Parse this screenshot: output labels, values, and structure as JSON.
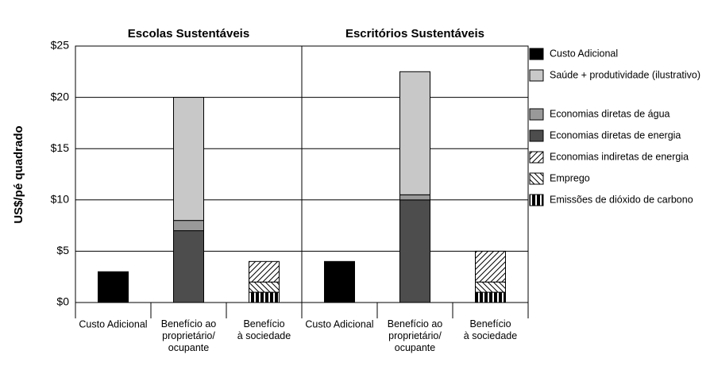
{
  "chart_data": {
    "type": "bar",
    "stacked": true,
    "ylabel": "US$/pé quadrado",
    "ylim": [
      0,
      25
    ],
    "yticks": [
      {
        "value": 0,
        "label": "$0"
      },
      {
        "value": 5,
        "label": "$5"
      },
      {
        "value": 10,
        "label": "$10"
      },
      {
        "value": 15,
        "label": "$15"
      },
      {
        "value": 20,
        "label": "$20"
      },
      {
        "value": 25,
        "label": "$25"
      }
    ],
    "grid": true,
    "legend": "right",
    "series": [
      {
        "name": "Custo Adicional",
        "color": "#000000",
        "pattern": "solid"
      },
      {
        "name": "Saúde + produtividade (ilustrativo)",
        "color": "#c8c8c8",
        "pattern": "solid"
      },
      {
        "name": "Economias diretas de água",
        "color": "#999999",
        "pattern": "solid"
      },
      {
        "name": "Economias diretas de energia",
        "color": "#4d4d4d",
        "pattern": "solid"
      },
      {
        "name": "Economias indiretas de energia",
        "color": "#000000",
        "pattern": "diagonal"
      },
      {
        "name": "Emprego",
        "color": "#000000",
        "pattern": "backdiagonal"
      },
      {
        "name": "Emissões de dióxido de carbono",
        "color": "#000000",
        "pattern": "vertical-stripes"
      }
    ],
    "panels": [
      {
        "title": "Escolas Sustentáveis",
        "categories": [
          "Custo Adicional",
          "Benefício ao\nproprietário/\nocupante",
          "Benefício\nà sociedade"
        ],
        "series": [
          {
            "values": [
              3,
              null,
              null
            ]
          },
          {
            "values": [
              null,
              12,
              null
            ]
          },
          {
            "values": [
              null,
              1,
              null
            ]
          },
          {
            "values": [
              null,
              7,
              null
            ]
          },
          {
            "values": [
              null,
              null,
              2
            ]
          },
          {
            "values": [
              null,
              null,
              1
            ]
          },
          {
            "values": [
              null,
              null,
              1
            ]
          }
        ]
      },
      {
        "title": "Escritórios Sustentáveis",
        "categories": [
          "Custo Adicional",
          "Benefício ao\nproprietário/\nocupante",
          "Benefício\nà sociedade"
        ],
        "series": [
          {
            "values": [
              4,
              null,
              null
            ]
          },
          {
            "values": [
              null,
              12,
              null
            ]
          },
          {
            "values": [
              null,
              0.5,
              null
            ]
          },
          {
            "values": [
              null,
              10,
              null
            ]
          },
          {
            "values": [
              null,
              null,
              3
            ]
          },
          {
            "values": [
              null,
              null,
              1
            ]
          },
          {
            "values": [
              null,
              null,
              1
            ]
          }
        ]
      }
    ]
  }
}
